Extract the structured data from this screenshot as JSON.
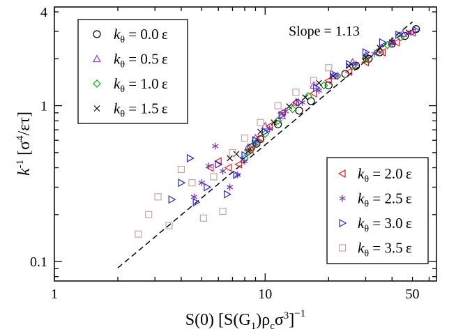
{
  "chart_data": {
    "type": "scatter",
    "xscale": "log",
    "yscale": "log",
    "xlim": [
      1,
      65
    ],
    "ylim": [
      0.075,
      4.3
    ],
    "xticks": [
      1,
      10,
      50
    ],
    "xtick_labels": [
      "1",
      "10",
      "50"
    ],
    "yticks": [
      0.1,
      1,
      4
    ],
    "ytick_labels": [
      "0.1",
      "1",
      "4"
    ],
    "xlabel": "S(0) [S(G₁)ρᶜσ³]⁻¹",
    "xlabel_parts": {
      "pre": "S(0) [S(G",
      "sub1": "1",
      "mid": ")ρ",
      "sub2": "c",
      "mid2": "σ",
      "sup1": "3",
      "post": "]",
      "sup2": "−1"
    },
    "ylabel_parts": {
      "k": "k",
      "sup": "-1",
      "rest1": " [σ",
      "sup2": "4",
      "rest2": "/ετ]"
    },
    "annotation": "Slope = 1.13",
    "fit_line": {
      "slope": 1.13,
      "x": [
        2.0,
        50.0
      ],
      "y": [
        0.091,
        3.45
      ],
      "style": "dashed"
    },
    "legend_left_position": "top-left",
    "legend_right_position": "bottom-right",
    "series": [
      {
        "name": "kθ = 0.0ε",
        "label_k": "k",
        "label_sub": "θ",
        "label_val": " = 0.0 ε",
        "marker": "circle",
        "color": "#000000",
        "legend": "left",
        "x": [
          8.6,
          9.1,
          9.5,
          11.5,
          14.5,
          16.5,
          20.0,
          24.0,
          27.0,
          31.0,
          35.0,
          40.0,
          46.0,
          52.0
        ],
        "y": [
          0.54,
          0.57,
          0.61,
          0.76,
          0.93,
          1.07,
          1.35,
          1.6,
          1.8,
          2.0,
          2.2,
          2.5,
          2.8,
          3.1
        ]
      },
      {
        "name": "kθ = 0.5ε",
        "label_k": "k",
        "label_sub": "θ",
        "label_val": " = 0.5 ε",
        "marker": "triangle-up",
        "color": "#9932cc",
        "legend": "left",
        "x": [
          8.3,
          9.0,
          10.0,
          12.0,
          14.0,
          17.0,
          21.0,
          26.0,
          30.0,
          35.0,
          40.0,
          45.0
        ],
        "y": [
          0.54,
          0.62,
          0.74,
          0.86,
          1.05,
          1.35,
          1.55,
          1.9,
          2.1,
          2.3,
          2.6,
          2.9
        ]
      },
      {
        "name": "kθ = 1.0ε",
        "label_k": "k",
        "label_sub": "θ",
        "label_val": " = 1.0 ε",
        "marker": "diamond",
        "color": "#00aa00",
        "legend": "left",
        "x": [
          8.0,
          8.4,
          8.8,
          9.2,
          10.0,
          11.5,
          13.5,
          16.0,
          19.0,
          22.0,
          26.0,
          30.0,
          34.0,
          38.0,
          44.0
        ],
        "y": [
          0.46,
          0.51,
          0.56,
          0.59,
          0.66,
          0.8,
          0.95,
          1.15,
          1.35,
          1.55,
          1.8,
          2.0,
          2.2,
          2.45,
          2.75
        ]
      },
      {
        "name": "kθ = 1.5ε",
        "label_k": "k",
        "label_sub": "θ",
        "label_val": " = 1.5 ε",
        "marker": "x",
        "color": "#000000",
        "legend": "left",
        "x": [
          6.8,
          7.3,
          7.8,
          8.3,
          9.5,
          11.0,
          13.0,
          15.5,
          18.0,
          21.0,
          25.0,
          30.0,
          35.0,
          40.0,
          48.0
        ],
        "y": [
          0.46,
          0.49,
          0.45,
          0.51,
          0.68,
          0.78,
          0.99,
          1.13,
          1.4,
          1.55,
          1.8,
          2.05,
          2.35,
          2.55,
          2.95
        ]
      },
      {
        "name": "kθ = 2.0ε",
        "label_k": "k",
        "label_sub": "θ",
        "label_val": " = 2.0 ε",
        "marker": "triangle-left",
        "color": "#e8191c",
        "legend": "right",
        "x": [
          5.5,
          6.0,
          6.7,
          7.5,
          8.5,
          9.5,
          10.5,
          12.0,
          14.0,
          17.0,
          20.0,
          25.0,
          30.0,
          36.0,
          42.0,
          50.0
        ],
        "y": [
          0.4,
          0.44,
          0.4,
          0.42,
          0.52,
          0.62,
          0.74,
          0.9,
          1.05,
          1.2,
          1.45,
          1.65,
          1.9,
          2.2,
          2.55,
          2.95
        ]
      },
      {
        "name": "kθ = 2.5ε",
        "label_k": "k",
        "label_sub": "θ",
        "label_val": " = 2.5 ε",
        "marker": "asterisk",
        "color": "#7b2fbe",
        "legend": "right",
        "x": [
          4.6,
          5.0,
          5.4,
          5.8,
          6.3,
          6.8,
          7.4,
          8.0,
          9.0,
          10.5,
          12.5,
          15.0,
          18.0,
          22.0,
          27.0,
          33.0,
          40.0,
          48.0
        ],
        "y": [
          0.26,
          0.32,
          0.41,
          0.55,
          0.38,
          0.3,
          0.36,
          0.44,
          0.57,
          0.71,
          0.92,
          1.05,
          1.25,
          1.55,
          1.85,
          2.15,
          2.5,
          2.9
        ]
      },
      {
        "name": "kθ = 3.0ε",
        "label_k": "k",
        "label_sub": "θ",
        "label_val": " = 3.0 ε",
        "marker": "triangle-right",
        "color": "#2323d8",
        "legend": "right",
        "x": [
          3.6,
          4.0,
          4.4,
          4.7,
          5.3,
          6.0,
          6.6,
          7.3,
          8.0,
          9.0,
          10.0,
          12.0,
          14.5,
          17.5,
          21.0,
          25.0,
          30.0,
          36.0,
          43.0,
          52.0
        ],
        "y": [
          0.25,
          0.32,
          0.46,
          0.24,
          0.3,
          0.42,
          0.27,
          0.36,
          0.48,
          0.6,
          0.68,
          0.87,
          1.05,
          1.3,
          1.6,
          1.85,
          2.2,
          2.55,
          2.85,
          3.05
        ]
      },
      {
        "name": "kθ = 3.5ε",
        "label_k": "k",
        "label_sub": "θ",
        "label_val": " = 3.5 ε",
        "marker": "square",
        "color": "#c9a3a3",
        "legend": "right",
        "x": [
          2.5,
          2.8,
          3.1,
          3.5,
          4.0,
          4.5,
          5.1,
          5.7,
          6.3,
          7.0,
          8.0,
          9.5,
          11.5,
          14.0,
          17.0,
          20.0
        ],
        "y": [
          0.15,
          0.2,
          0.26,
          0.17,
          0.39,
          0.32,
          0.19,
          0.35,
          0.21,
          0.5,
          0.62,
          0.78,
          1.0,
          1.22,
          1.45,
          1.75
        ]
      }
    ]
  }
}
